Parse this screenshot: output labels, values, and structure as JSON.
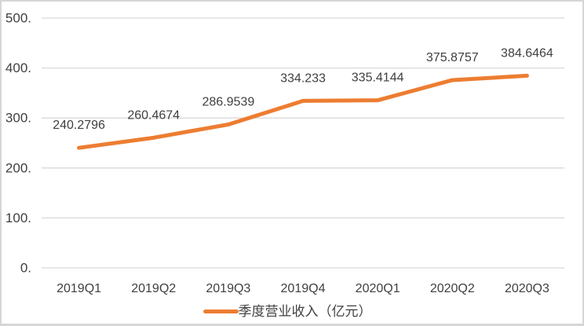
{
  "chart_data": {
    "type": "line",
    "title": "",
    "xlabel": "",
    "ylabel": "",
    "categories": [
      "2019Q1",
      "2019Q2",
      "2019Q3",
      "2019Q4",
      "2020Q1",
      "2020Q2",
      "2020Q3"
    ],
    "series": [
      {
        "name": "季度营业收入（亿元）",
        "values": [
          240.2796,
          260.4674,
          286.9539,
          334.233,
          335.4144,
          375.8757,
          384.6464
        ]
      }
    ],
    "data_labels": [
      "240.2796",
      "260.4674",
      "286.9539",
      "334.233",
      "335.4144",
      "375.8757",
      "384.6464"
    ],
    "y_ticks": [
      {
        "value": 0,
        "label": "0."
      },
      {
        "value": 100,
        "label": "100."
      },
      {
        "value": 200,
        "label": "200."
      },
      {
        "value": 300,
        "label": "300."
      },
      {
        "value": 400,
        "label": "400."
      },
      {
        "value": 500,
        "label": "500."
      }
    ],
    "ylim": [
      0,
      500
    ],
    "grid": true,
    "legend": "季度营业收入（亿元）",
    "legend_position": "bottom",
    "colors": {
      "line": "#ED7D31",
      "grid": "#D9D9D9",
      "text": "#404040",
      "frame_border": "#D6D6D6",
      "background": "#FFFFFF"
    }
  }
}
